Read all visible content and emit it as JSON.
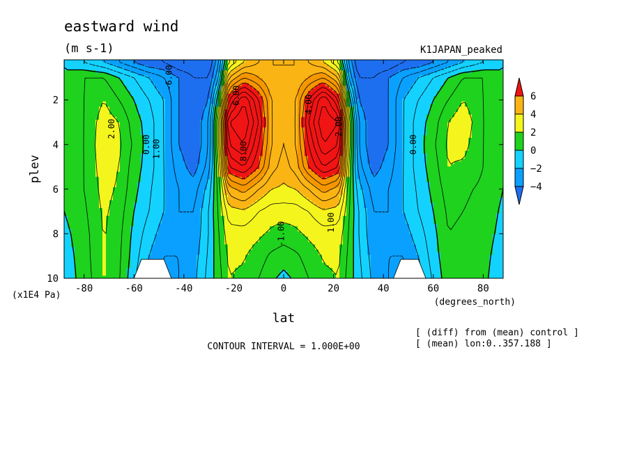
{
  "chart_data": {
    "type": "heatmap",
    "title": "eastward wind",
    "units_label": "(m s-1)",
    "experiment_label": "K1JAPAN_peaked",
    "xlabel": "lat",
    "x_units": "(degrees_north)",
    "ylabel": "plev",
    "y_units": "(x1E4 Pa)",
    "xlim": [
      -88,
      88
    ],
    "ylim": [
      0.2,
      10
    ],
    "y_reversed": true,
    "x_ticks": [
      -80,
      -60,
      -40,
      -20,
      0,
      20,
      40,
      60,
      80
    ],
    "x_tick_labels": [
      "-80",
      "-60",
      "-40",
      "-20",
      "0",
      "20",
      "40",
      "60",
      "80"
    ],
    "y_ticks": [
      2,
      4,
      6,
      8,
      10
    ],
    "y_tick_labels": [
      "2",
      "4",
      "6",
      "8",
      "10"
    ],
    "contour_interval_text": "CONTOUR INTERVAL = 1.000E+00",
    "notes": [
      "[ (diff) from (mean) control ]",
      "[ (mean) lon:0..357.188 ]"
    ],
    "colorbar": {
      "levels": [
        -4,
        -2,
        0,
        2,
        4,
        6
      ],
      "tick_labels": [
        "6",
        "4",
        "2",
        "0",
        "−2",
        "−4"
      ],
      "colors": {
        "lt_m4": "#1e6ef0",
        "m4_m2": "#0aa0ff",
        "m2_0": "#14d2ff",
        "0_2": "#1ed21e",
        "2_4": "#f5f51e",
        "4_6": "#fab414",
        "6_8": "#f59600",
        "gt_8": "#f01414"
      }
    },
    "contour_labels": [
      "2.00",
      "0.00",
      "1.00",
      "-6.00",
      "6.00",
      "8.00",
      "-1.00",
      "4.00",
      "2.00",
      "1.00",
      "0.00"
    ],
    "field": {
      "lat_nodes": [
        -88,
        -80,
        -72,
        -66,
        -60,
        -54,
        -48,
        -42,
        -36,
        -30,
        -26,
        -22,
        -16,
        -10,
        -5,
        0,
        5,
        10,
        16,
        22,
        26,
        30,
        36,
        42,
        48,
        54,
        60,
        66,
        72,
        80,
        88
      ],
      "plev_nodes": [
        0.3,
        1,
        2,
        3,
        4,
        5,
        6,
        7,
        8,
        9,
        10
      ],
      "values": [
        [
          0,
          -1,
          -2,
          -3,
          -4,
          -5,
          -5,
          -6,
          -6,
          -6,
          -3,
          2,
          4,
          5,
          5,
          5,
          5,
          5,
          4,
          2,
          -3,
          -6,
          -6,
          -6,
          -5,
          -5,
          -4,
          -3,
          -2,
          -1,
          0
        ],
        [
          0,
          1,
          1,
          0,
          -1,
          -2,
          -3,
          -4,
          -5,
          -5,
          -2,
          5,
          7,
          6,
          5,
          5,
          5,
          6,
          7,
          5,
          -2,
          -5,
          -5,
          -4,
          -3,
          -2,
          -1,
          0,
          1,
          1,
          0
        ],
        [
          0,
          1,
          2,
          1,
          0,
          -1,
          -2,
          -4,
          -5,
          -4,
          1,
          9,
          12,
          9,
          6,
          5,
          6,
          9,
          12,
          9,
          1,
          -4,
          -5,
          -4,
          -2,
          -1,
          0,
          1,
          2,
          1,
          0
        ],
        [
          0,
          1,
          2.6,
          2,
          0.5,
          -0.5,
          -2,
          -4,
          -5,
          -3,
          3,
          12,
          13,
          10,
          6,
          5,
          6,
          10,
          13,
          12,
          3,
          -3,
          -5,
          -4,
          -2,
          -0.5,
          0.5,
          2,
          2.8,
          1,
          0
        ],
        [
          0,
          1,
          2.8,
          2.2,
          0.8,
          -0.5,
          -2,
          -4,
          -5,
          -3,
          3,
          11,
          12,
          9,
          6,
          5,
          6,
          9,
          12,
          11,
          3,
          -3,
          -5,
          -4,
          -2,
          -0.5,
          0.8,
          2.2,
          2.4,
          1,
          0
        ],
        [
          0,
          1,
          2.6,
          2,
          0.5,
          -0.5,
          -2,
          -3.5,
          -4.5,
          -2.5,
          2,
          9,
          10,
          8,
          5.5,
          4.5,
          5.5,
          8,
          10,
          9,
          2,
          -2.5,
          -4.5,
          -3.5,
          -2,
          -0.5,
          0.5,
          2,
          1.8,
          1,
          0
        ],
        [
          0,
          1,
          2.4,
          1.8,
          0.3,
          -0.8,
          -2,
          -3,
          -3.5,
          -1.5,
          1.5,
          5.5,
          6.5,
          5,
          4,
          3.8,
          4,
          5,
          6.5,
          5.5,
          1.5,
          -1.5,
          -3.5,
          -3,
          -2,
          -0.8,
          0.3,
          1.5,
          1.2,
          0.8,
          0
        ],
        [
          0,
          0.8,
          2.2,
          1.5,
          0,
          -1,
          -2,
          -3,
          -3,
          -1,
          1.2,
          3.5,
          3.8,
          3,
          2.5,
          2.5,
          2.5,
          3,
          3.8,
          3.5,
          1.2,
          -1,
          -3,
          -3,
          -2,
          -1,
          0,
          1.2,
          1,
          0.6,
          -0.2
        ],
        [
          -0.3,
          0.6,
          2.1,
          1.3,
          -0.3,
          -1.5,
          -2.5,
          -3,
          -2.8,
          -1,
          1,
          2.6,
          2.6,
          2.2,
          1.8,
          1.5,
          1.8,
          2.2,
          2.6,
          2.6,
          1,
          -1,
          -2.8,
          -3,
          -2.5,
          -1.5,
          -0.3,
          1,
          0.8,
          0.4,
          -0.3
        ],
        [
          -0.5,
          0.5,
          2.1,
          1.2,
          -0.5,
          -2,
          -3,
          -3,
          -2.5,
          -0.8,
          0.8,
          2.2,
          2.1,
          1.5,
          0.8,
          0.5,
          0.8,
          1.5,
          2.1,
          2.2,
          0.8,
          -0.8,
          -2.5,
          -3,
          -3,
          -2,
          -0.5,
          0.8,
          0.6,
          0.3,
          -0.5
        ],
        [
          -0.6,
          0.4,
          2,
          1.1,
          -0.8,
          -2.5,
          -3.5,
          -3,
          -2.3,
          -0.6,
          0.6,
          2,
          1.8,
          1,
          0.2,
          -0.3,
          0.2,
          1,
          1.8,
          2,
          0.6,
          -0.6,
          -2.3,
          -3,
          -3.5,
          -2.5,
          -0.8,
          0.6,
          0.5,
          0.2,
          -0.6
        ]
      ]
    }
  }
}
